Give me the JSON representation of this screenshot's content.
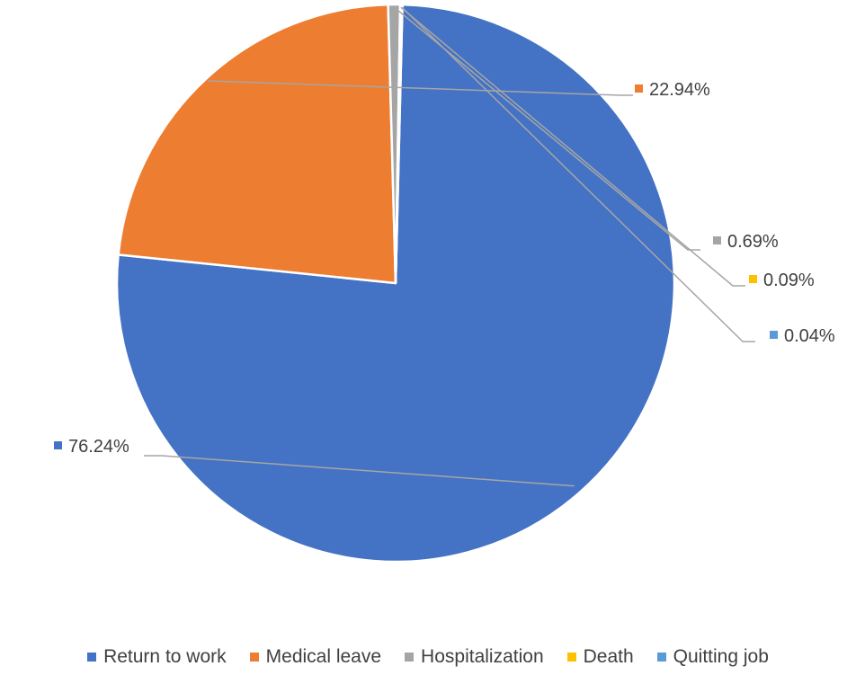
{
  "chart_data": {
    "type": "pie",
    "title": "",
    "start_angle_deg": 1.4,
    "direction": "clockwise",
    "legend_position": "bottom",
    "series": [
      {
        "name": "Return to work",
        "value": 76.24,
        "label": "76.24%",
        "color": "#4472C4"
      },
      {
        "name": "Medical leave",
        "value": 22.94,
        "label": "22.94%",
        "color": "#ED7D31"
      },
      {
        "name": "Hospitalization",
        "value": 0.69,
        "label": "0.69%",
        "color": "#A5A5A5"
      },
      {
        "name": "Death",
        "value": 0.09,
        "label": "0.09%",
        "color": "#FFC000"
      },
      {
        "name": "Quitting job",
        "value": 0.04,
        "label": "0.04%",
        "color": "#5B9BD5"
      }
    ]
  }
}
